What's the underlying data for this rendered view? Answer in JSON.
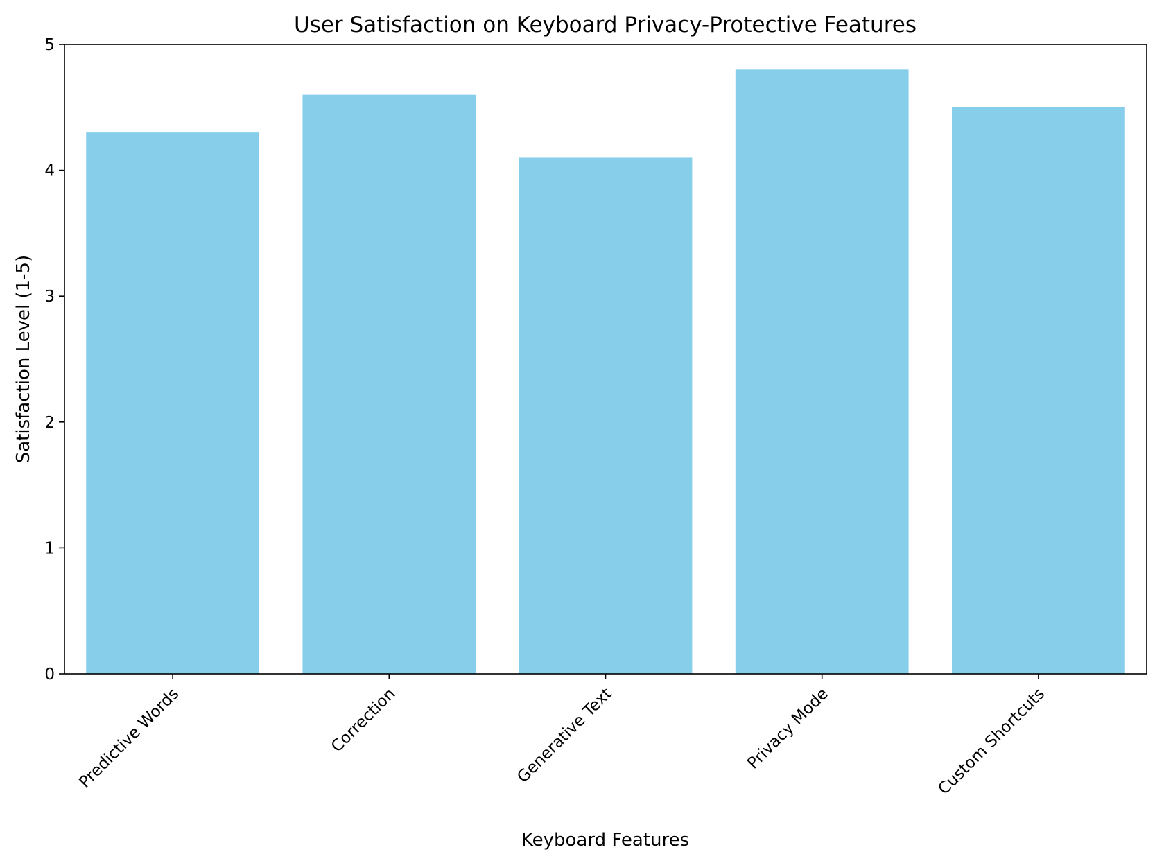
{
  "chart_data": {
    "type": "bar",
    "title": "User Satisfaction on Keyboard Privacy-Protective Features",
    "xlabel": "Keyboard Features",
    "ylabel": "Satisfaction Level (1-5)",
    "categories": [
      "Predictive Words",
      "Correction",
      "Generative Text",
      "Privacy Mode",
      "Custom Shortcuts"
    ],
    "values": [
      4.3,
      4.6,
      4.1,
      4.8,
      4.5
    ],
    "ylim": [
      0,
      5
    ],
    "yticks": [
      0,
      1,
      2,
      3,
      4,
      5
    ],
    "bar_color": "#87CEEB",
    "grid": false,
    "legend": "none"
  }
}
